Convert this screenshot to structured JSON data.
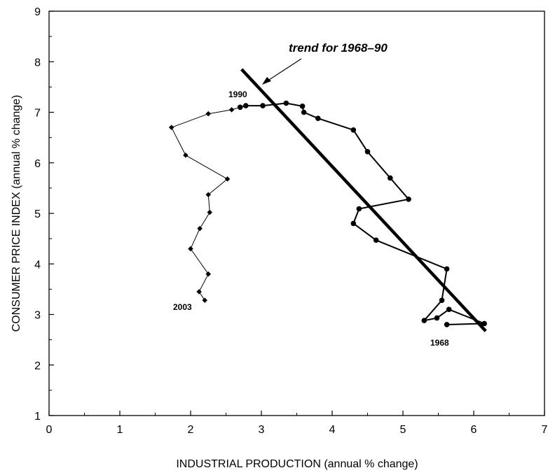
{
  "chart_data": {
    "type": "scatter",
    "title": "",
    "xlabel": "INDUSTRIAL PRODUCTION (annual % change)",
    "ylabel": "CONSUMER PRICE INDEX (annual % change)",
    "xlim": [
      0,
      7
    ],
    "ylim": [
      1,
      9
    ],
    "xticks": [
      "0",
      "1",
      "2",
      "3",
      "4",
      "5",
      "6",
      "7"
    ],
    "yticks": [
      "1",
      "2",
      "3",
      "4",
      "5",
      "6",
      "7",
      "8",
      "9"
    ],
    "grid": false,
    "series": [
      {
        "marker": "dot",
        "x": [
          5.62,
          6.15,
          5.65,
          5.48,
          5.3,
          5.55,
          5.62,
          4.62,
          4.3,
          4.38,
          5.08,
          4.82,
          4.5,
          4.3,
          3.8,
          3.6,
          3.58,
          3.35,
          3.02,
          2.78,
          2.7
        ],
        "y": [
          2.8,
          2.82,
          3.1,
          2.93,
          2.88,
          3.28,
          3.9,
          4.47,
          4.8,
          5.09,
          5.28,
          5.7,
          6.22,
          6.65,
          6.88,
          7.0,
          7.12,
          7.18,
          7.13,
          7.13,
          7.1
        ]
      },
      {
        "marker": "diamond",
        "x": [
          2.7,
          2.58,
          2.25,
          1.73,
          1.93,
          2.52,
          2.25,
          2.27,
          2.13,
          2.0,
          2.25,
          2.12,
          2.2
        ],
        "y": [
          7.1,
          7.05,
          6.97,
          6.7,
          6.15,
          5.68,
          5.37,
          5.02,
          4.7,
          4.3,
          3.8,
          3.45,
          3.28
        ]
      }
    ],
    "trend_line": {
      "x": [
        2.72,
        6.17
      ],
      "y": [
        7.85,
        2.67
      ]
    },
    "annotations": {
      "trend": "trend for 1968–90",
      "label_1990": "1990",
      "label_1968": "1968",
      "label_2003": "2003"
    }
  }
}
